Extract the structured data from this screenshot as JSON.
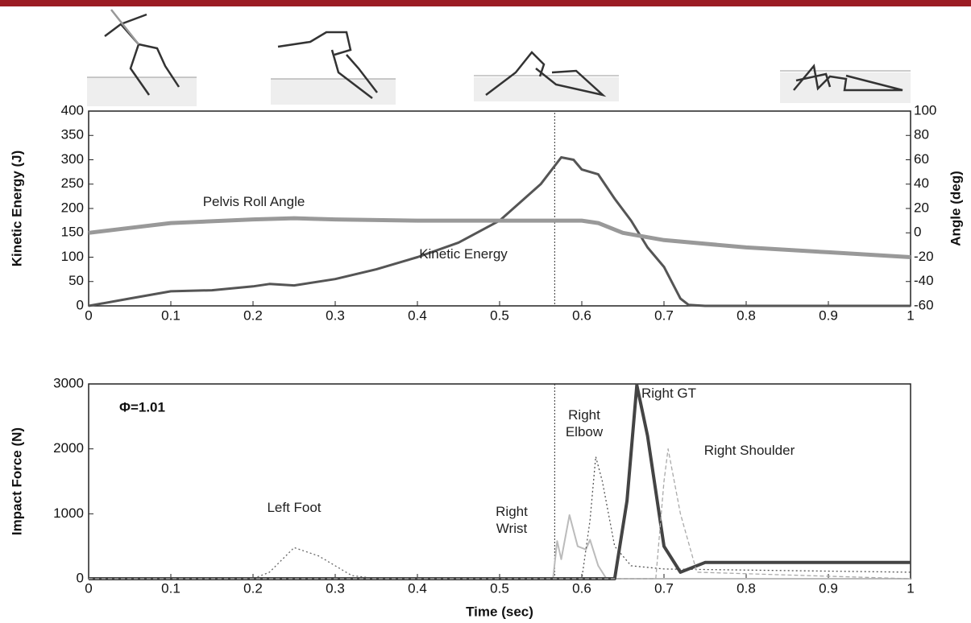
{
  "chart_data": [
    {
      "type": "line",
      "ylabel": "Kinetic Energy (J)",
      "y2label": "Angle (deg)",
      "xlim": [
        0,
        1
      ],
      "xticks": [
        0,
        0.1,
        0.2,
        0.3,
        0.4,
        0.5,
        0.6,
        0.7,
        0.8,
        0.9,
        1
      ],
      "ylim": [
        0,
        400
      ],
      "yticks": [
        0,
        50,
        100,
        150,
        200,
        250,
        300,
        350,
        400
      ],
      "y2lim": [
        -60,
        100
      ],
      "y2ticks": [
        -60,
        -40,
        -20,
        0,
        20,
        40,
        60,
        80,
        100
      ],
      "reference_x": 0.567,
      "series": [
        {
          "name": "Kinetic Energy",
          "color": "#555555",
          "x": [
            0,
            0.05,
            0.1,
            0.15,
            0.2,
            0.22,
            0.25,
            0.3,
            0.35,
            0.4,
            0.45,
            0.5,
            0.55,
            0.575,
            0.59,
            0.6,
            0.62,
            0.64,
            0.66,
            0.68,
            0.7,
            0.72,
            0.73,
            0.75,
            0.8,
            0.9,
            1
          ],
          "values": [
            0,
            15,
            30,
            32,
            40,
            45,
            42,
            55,
            75,
            100,
            130,
            175,
            250,
            305,
            300,
            280,
            270,
            220,
            175,
            120,
            80,
            15,
            2,
            0,
            0,
            0,
            0
          ]
        },
        {
          "name": "Pelvis Roll Angle",
          "color": "#999999",
          "axis": "y2",
          "x": [
            0,
            0.05,
            0.1,
            0.2,
            0.25,
            0.3,
            0.4,
            0.5,
            0.6,
            0.62,
            0.65,
            0.7,
            0.8,
            0.9,
            1
          ],
          "values": [
            0,
            4,
            8,
            11,
            12,
            11,
            10,
            10,
            10,
            8,
            0,
            -6,
            -12,
            -16,
            -20
          ]
        }
      ]
    },
    {
      "type": "line",
      "xlabel": "Time (sec)",
      "ylabel": "Impact Force (N)",
      "annotation": "Φ=1.01",
      "xlim": [
        0,
        1
      ],
      "xticks": [
        0,
        0.1,
        0.2,
        0.3,
        0.4,
        0.5,
        0.6,
        0.7,
        0.8,
        0.9,
        1
      ],
      "ylim": [
        0,
        3000
      ],
      "yticks": [
        0,
        1000,
        2000,
        3000
      ],
      "reference_x": 0.567,
      "series": [
        {
          "name": "Left Foot",
          "color": "#666666",
          "dash": "2,3",
          "x": [
            0,
            0.2,
            0.22,
            0.25,
            0.28,
            0.32,
            0.35,
            1
          ],
          "values": [
            0,
            0,
            100,
            480,
            350,
            50,
            0,
            0
          ]
        },
        {
          "name": "Right Wrist",
          "color": "#bbbbbb",
          "dash": "",
          "x": [
            0,
            0.565,
            0.57,
            0.575,
            0.585,
            0.595,
            0.605,
            0.61,
            0.62,
            0.63,
            1
          ],
          "values": [
            0,
            0,
            580,
            300,
            980,
            500,
            450,
            600,
            200,
            0,
            0
          ]
        },
        {
          "name": "Right Elbow",
          "color": "#555555",
          "dash": "2,3",
          "x": [
            0,
            0.6,
            0.61,
            0.617,
            0.625,
            0.64,
            0.66,
            0.7,
            1
          ],
          "values": [
            0,
            0,
            900,
            1880,
            1500,
            500,
            200,
            150,
            100
          ]
        },
        {
          "name": "Right GT",
          "color": "#444444",
          "dash": "",
          "x": [
            0,
            0.64,
            0.655,
            0.667,
            0.68,
            0.7,
            0.72,
            0.75,
            0.8,
            0.9,
            1
          ],
          "values": [
            0,
            0,
            1200,
            2980,
            2200,
            500,
            100,
            250,
            250,
            250,
            250
          ]
        },
        {
          "name": "Right Shoulder",
          "color": "#aaaaaa",
          "dash": "5,3",
          "x": [
            0,
            0.69,
            0.7,
            0.705,
            0.72,
            0.74,
            1
          ],
          "values": [
            0,
            0,
            1500,
            2000,
            1000,
            100,
            0
          ]
        }
      ]
    }
  ]
}
